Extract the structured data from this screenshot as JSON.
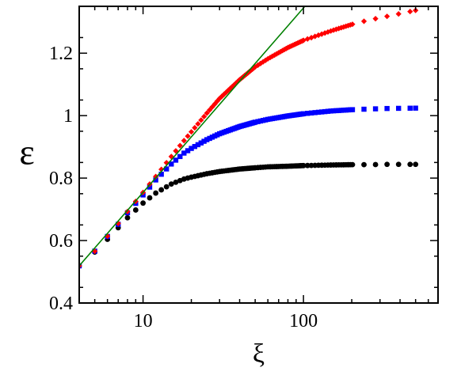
{
  "chart_data": {
    "type": "scatter",
    "title": "",
    "xlabel": "ξ",
    "ylabel": "ε",
    "x_scale": "log",
    "xlim": [
      4.0,
      690
    ],
    "ylim": [
      0.4,
      1.35
    ],
    "grid": false,
    "legend": "none",
    "x_ticks": [
      10,
      100
    ],
    "y_ticks": [
      0.4,
      0.6,
      0.8,
      1.0,
      1.2
    ],
    "x_tick_labels": [
      "10",
      "100"
    ],
    "y_tick_labels": [
      "0.4",
      "0.6",
      "0.8",
      "1",
      "1.2"
    ],
    "series": [
      {
        "color": "#000000",
        "marker": "circle",
        "points": [
          [
            4,
            0.519
          ],
          [
            5,
            0.563
          ],
          [
            6,
            0.604
          ],
          [
            7,
            0.641
          ],
          [
            8,
            0.673
          ],
          [
            10,
            0.72
          ],
          [
            12,
            0.752
          ],
          [
            15,
            0.781
          ],
          [
            18,
            0.797
          ],
          [
            20,
            0.803
          ],
          [
            25,
            0.814
          ],
          [
            30,
            0.821
          ],
          [
            40,
            0.829
          ],
          [
            50,
            0.833
          ],
          [
            60,
            0.836
          ],
          [
            80,
            0.838
          ],
          [
            100,
            0.84
          ],
          [
            150,
            0.842
          ],
          [
            200,
            0.843
          ],
          [
            250,
            0.843
          ],
          [
            340,
            0.844
          ],
          [
            500,
            0.844
          ]
        ]
      },
      {
        "color": "#0000ff",
        "marker": "square",
        "points": [
          [
            4,
            0.519
          ],
          [
            5,
            0.566
          ],
          [
            6,
            0.613
          ],
          [
            7,
            0.652
          ],
          [
            8,
            0.689
          ],
          [
            10,
            0.746
          ],
          [
            12,
            0.794
          ],
          [
            15,
            0.845
          ],
          [
            18,
            0.88
          ],
          [
            20,
            0.895
          ],
          [
            25,
            0.923
          ],
          [
            30,
            0.942
          ],
          [
            40,
            0.965
          ],
          [
            50,
            0.979
          ],
          [
            60,
            0.988
          ],
          [
            80,
            0.999
          ],
          [
            100,
            1.006
          ],
          [
            150,
            1.015
          ],
          [
            200,
            1.019
          ],
          [
            250,
            1.021
          ],
          [
            340,
            1.023
          ],
          [
            500,
            1.024
          ]
        ]
      },
      {
        "color": "#ff0000",
        "marker": "diamond",
        "points": [
          [
            4,
            0.519
          ],
          [
            5,
            0.566
          ],
          [
            6,
            0.614
          ],
          [
            7,
            0.655
          ],
          [
            8,
            0.693
          ],
          [
            10,
            0.754
          ],
          [
            12,
            0.805
          ],
          [
            15,
            0.869
          ],
          [
            18,
            0.92
          ],
          [
            20,
            0.948
          ],
          [
            25,
            1.008
          ],
          [
            30,
            1.055
          ],
          [
            40,
            1.115
          ],
          [
            50,
            1.156
          ],
          [
            60,
            1.182
          ],
          [
            80,
            1.218
          ],
          [
            100,
            1.241
          ],
          [
            150,
            1.272
          ],
          [
            200,
            1.292
          ],
          [
            250,
            1.305
          ],
          [
            340,
            1.319
          ],
          [
            500,
            1.337
          ]
        ]
      },
      {
        "color": "#008000",
        "marker": "line",
        "points": [
          [
            4,
            0.519
          ],
          [
            102,
            1.35
          ]
        ]
      }
    ]
  }
}
